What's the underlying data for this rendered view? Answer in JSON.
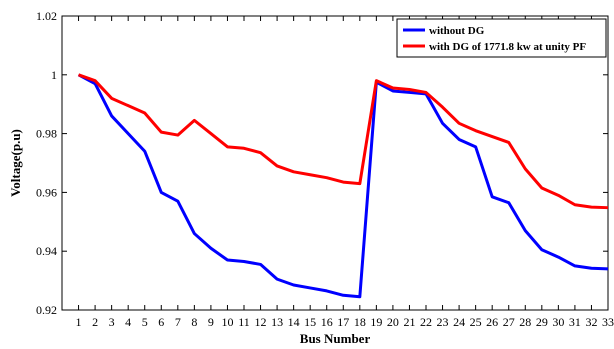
{
  "chart_data": {
    "type": "line",
    "xlabel": "Bus Number",
    "ylabel": "Voltage(p.u)",
    "x": [
      1,
      2,
      3,
      4,
      5,
      6,
      7,
      8,
      9,
      10,
      11,
      12,
      13,
      14,
      15,
      16,
      17,
      18,
      19,
      20,
      21,
      22,
      23,
      24,
      25,
      26,
      27,
      28,
      29,
      30,
      31,
      32,
      33
    ],
    "xlim": [
      0,
      33
    ],
    "ylim": [
      0.92,
      1.02
    ],
    "yticks": [
      "0.92",
      "0.94",
      "0.96",
      "0.98",
      "1",
      "1.02"
    ],
    "xticks": [
      "1",
      "2",
      "3",
      "4",
      "5",
      "6",
      "7",
      "8",
      "9",
      "10",
      "11",
      "12",
      "13",
      "14",
      "15",
      "16",
      "17",
      "18",
      "19",
      "20",
      "21",
      "22",
      "23",
      "24",
      "25",
      "26",
      "27",
      "28",
      "29",
      "30",
      "31",
      "32",
      "33"
    ],
    "grid": false,
    "legend": "top-right",
    "series": [
      {
        "name": "without DG",
        "color": "#0000ff",
        "values": [
          1.0,
          0.997,
          0.986,
          0.98,
          0.974,
          0.96,
          0.957,
          0.946,
          0.941,
          0.937,
          0.9365,
          0.9355,
          0.9305,
          0.9285,
          0.9275,
          0.9265,
          0.925,
          0.9245,
          0.9975,
          0.9945,
          0.994,
          0.9935,
          0.9835,
          0.978,
          0.9755,
          0.9585,
          0.9565,
          0.947,
          0.9405,
          0.938,
          0.935,
          0.9342,
          0.934
        ]
      },
      {
        "name": "with DG of 1771.8 kw at unity PF",
        "color": "#ff0000",
        "values": [
          1.0,
          0.998,
          0.992,
          0.9895,
          0.987,
          0.9805,
          0.9795,
          0.9845,
          0.98,
          0.9755,
          0.975,
          0.9735,
          0.969,
          0.967,
          0.966,
          0.965,
          0.9635,
          0.963,
          0.998,
          0.9955,
          0.995,
          0.994,
          0.989,
          0.9835,
          0.981,
          0.979,
          0.977,
          0.968,
          0.9615,
          0.959,
          0.9558,
          0.955,
          0.9548
        ]
      }
    ]
  }
}
